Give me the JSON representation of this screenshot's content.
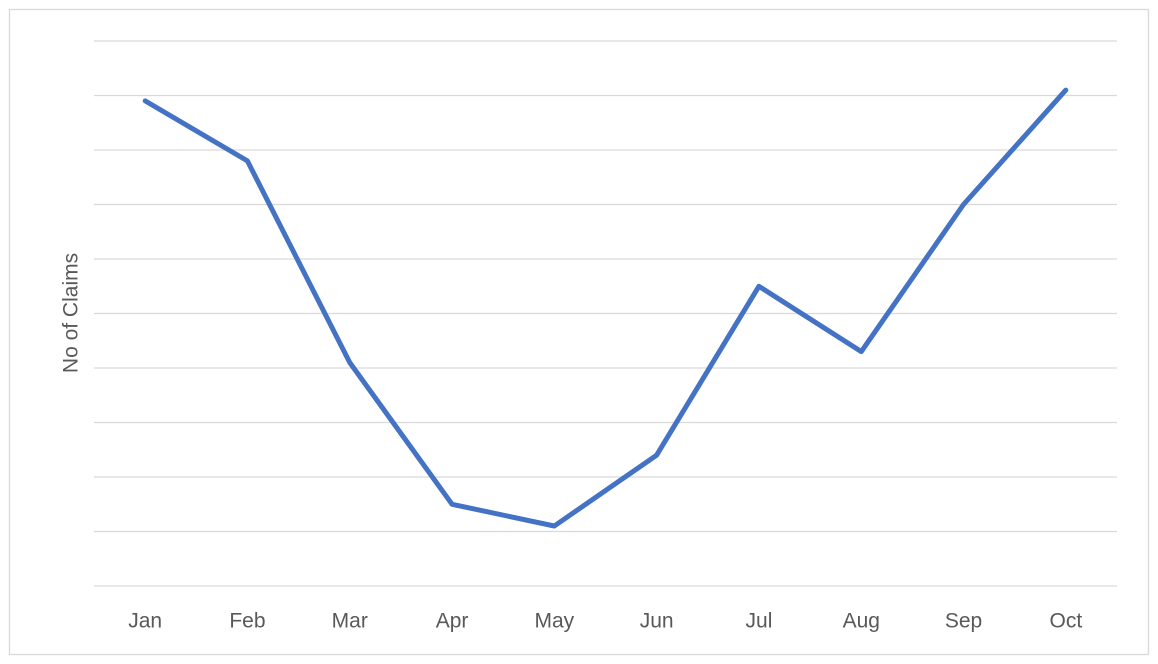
{
  "chart_data": {
    "type": "line",
    "y_label": "No of Claims",
    "categories": [
      "Jan",
      "Feb",
      "Mar",
      "Apr",
      "May",
      "Jun",
      "Jul",
      "Aug",
      "Sep",
      "Oct"
    ],
    "values": [
      8.9,
      7.8,
      4.1,
      1.5,
      1.1,
      2.4,
      5.5,
      4.3,
      7.0,
      9.1
    ],
    "color": "#4472c4",
    "ylim": [
      0,
      10
    ],
    "yticks": [
      0,
      1,
      2,
      3,
      4,
      5,
      6,
      7,
      8,
      9,
      10
    ],
    "grid": true,
    "show_ytick_labels": false
  }
}
